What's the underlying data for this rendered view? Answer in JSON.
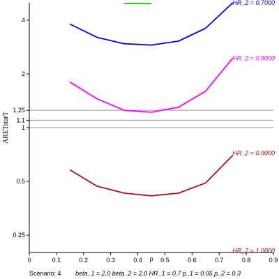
{
  "chart_data": {
    "type": "line",
    "ylabel": "ARETstarT",
    "xlabel": "ρ",
    "y_scale": "log",
    "xlim": [
      0,
      0.9
    ],
    "ylim": [
      0.2,
      5
    ],
    "x_ticks": [
      "0",
      "0.1",
      "0.2",
      "0.3",
      "0.4",
      "0.5",
      "0.6",
      "0.7",
      "0.8",
      "0.9"
    ],
    "y_ticks": [
      {
        "value": 0.25,
        "label": "0.25"
      },
      {
        "value": 0.5,
        "label": "0.5"
      },
      {
        "value": 1,
        "label": "1"
      },
      {
        "value": 1.1,
        "label": "1.1"
      },
      {
        "value": 1.25,
        "label": "1.25"
      },
      {
        "value": 2,
        "label": "2"
      },
      {
        "value": 4,
        "label": "4"
      }
    ],
    "reference_lines": [
      1,
      1.1,
      1.25
    ],
    "series": [
      {
        "name": "HR_2 = 0.6000",
        "color": "#00cc00",
        "x": [
          0.35,
          0.45
        ],
        "y": [
          4.95,
          4.95
        ]
      },
      {
        "name": "HR_2 = 0.7000",
        "color": "#0000dd",
        "x": [
          0.15,
          0.25,
          0.35,
          0.45,
          0.55,
          0.65,
          0.75
        ],
        "y": [
          3.8,
          3.2,
          2.95,
          2.9,
          3.05,
          3.6,
          5.1
        ]
      },
      {
        "name": "HR_2 = 0.8000",
        "color": "#ff00ff",
        "x": [
          0.15,
          0.25,
          0.35,
          0.45,
          0.55,
          0.65,
          0.75
        ],
        "y": [
          1.8,
          1.45,
          1.25,
          1.22,
          1.3,
          1.6,
          2.45
        ]
      },
      {
        "name": "HR_2 = 0.9000",
        "color": "#aa1111",
        "x": [
          0.15,
          0.25,
          0.35,
          0.45,
          0.55,
          0.65,
          0.75
        ],
        "y": [
          0.58,
          0.47,
          0.43,
          0.415,
          0.43,
          0.49,
          0.7
        ]
      },
      {
        "name": "HR_2 = 1.0000",
        "color": "#aa1111",
        "x": [],
        "y": []
      }
    ],
    "labels": [
      {
        "text": "HR_2 = 0.7000",
        "color": "#0000dd",
        "y": 5.0
      },
      {
        "text": "HR_2 = 0.8000",
        "color": "#ff00ff",
        "y": 2.45
      },
      {
        "text": "HR_2 = 0.9000",
        "color": "#aa1111",
        "y": 0.72
      },
      {
        "text": "HR_2 = 1.0000",
        "color": "#aa1111",
        "y": 0.205
      }
    ]
  },
  "footer": {
    "scenario": "Scenario: 4",
    "params": "beta_1 = 2.0  beta_2 = 2.0  HR_1 = 0.7  p_1 = 0.05  p_2 = 0.3"
  }
}
